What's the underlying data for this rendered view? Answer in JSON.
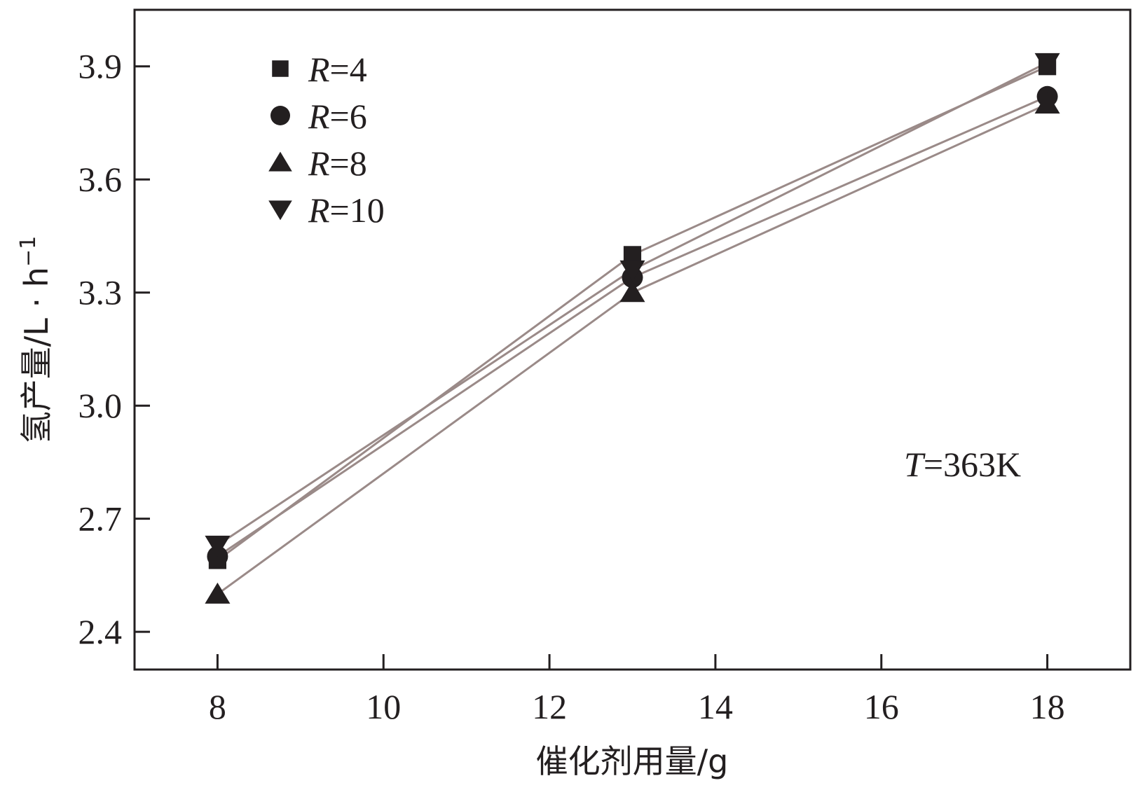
{
  "chart_data": {
    "type": "line",
    "xlabel": "催化剂用量/g",
    "ylabel": "氢产量/L · h",
    "ylabel_sup": "−1",
    "x": [
      8,
      13,
      18
    ],
    "xlim": [
      7,
      19
    ],
    "ylim": [
      2.3,
      4.05
    ],
    "xticks": [
      8,
      10,
      12,
      14,
      16,
      18
    ],
    "yticks": [
      2.4,
      2.7,
      3.0,
      3.3,
      3.6,
      3.9
    ],
    "ytick_labels": [
      "2.4",
      "2.7",
      "3.0",
      "3.3",
      "3.6",
      "3.9"
    ],
    "grid": false,
    "legend_position": "top-left",
    "annotation": {
      "italic": "T",
      "text": "=363K"
    },
    "series": [
      {
        "name_italic": "R",
        "name": "=4",
        "marker": "square",
        "values": [
          2.59,
          3.4,
          3.9
        ]
      },
      {
        "name_italic": "R",
        "name": "=6",
        "marker": "circle",
        "values": [
          2.6,
          3.34,
          3.82
        ]
      },
      {
        "name_italic": "R",
        "name": "=8",
        "marker": "triangle-up",
        "values": [
          2.5,
          3.3,
          3.8
        ]
      },
      {
        "name_italic": "R",
        "name": "=10",
        "marker": "triangle-down",
        "values": [
          2.63,
          3.36,
          3.91
        ]
      }
    ],
    "colors": {
      "line": "#9a8a88",
      "marker": "#231f20",
      "axis": "#231f20"
    }
  }
}
